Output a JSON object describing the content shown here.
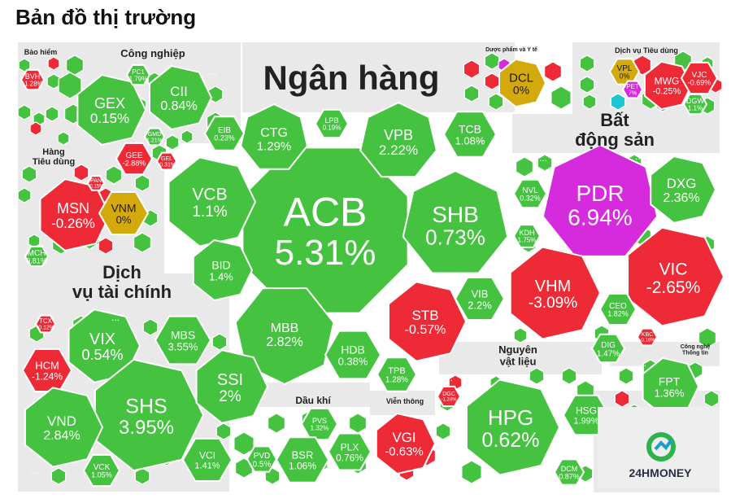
{
  "page": {
    "title": "Bản đồ thị trường"
  },
  "colors": {
    "up": "#45c240",
    "down": "#ee2a36",
    "flat": "#d4a90c",
    "ceiling": "#d62bdc",
    "floor": "#1ec5d3",
    "gap": "#e9e9e9"
  },
  "chart_data": {
    "type": "treemap",
    "sectors": [
      {
        "name": "Bảo hiểm",
        "stocks": [
          {
            "ticker": "BVH",
            "change": "-1.28%"
          }
        ]
      },
      {
        "name": "Công nghiệp",
        "stocks": [
          {
            "ticker": "GEX",
            "change": "0.15%"
          },
          {
            "ticker": "PC1",
            "change": "1.79%"
          },
          {
            "ticker": "CII",
            "change": "0.84%"
          },
          {
            "ticker": "GEE",
            "change": "-2.88%"
          },
          {
            "ticker": "GMD",
            "change": "1.21%"
          },
          {
            "ticker": "GEL",
            "change": "-0.31%"
          }
        ]
      },
      {
        "name": "Ngân hàng",
        "stocks": [
          {
            "ticker": "ACB",
            "change": "5.31%"
          },
          {
            "ticker": "SHB",
            "change": "0.73%"
          },
          {
            "ticker": "VCB",
            "change": "1.1%"
          },
          {
            "ticker": "CTG",
            "change": "1.29%"
          },
          {
            "ticker": "EIB",
            "change": "0.23%"
          },
          {
            "ticker": "LPB",
            "change": "0.19%"
          },
          {
            "ticker": "VPB",
            "change": "2.22%"
          },
          {
            "ticker": "TCB",
            "change": "1.08%"
          },
          {
            "ticker": "BID",
            "change": "1.4%"
          },
          {
            "ticker": "MBB",
            "change": "2.82%"
          },
          {
            "ticker": "HDB",
            "change": "0.38%"
          },
          {
            "ticker": "TPB",
            "change": "1.28%"
          },
          {
            "ticker": "STB",
            "change": "-0.57%"
          },
          {
            "ticker": "VIB",
            "change": "2.2%"
          }
        ]
      },
      {
        "name": "Dược phẩm và Y tế",
        "stocks": [
          {
            "ticker": "DCL",
            "change": "0%"
          }
        ]
      },
      {
        "name": "Dịch vụ Tiêu dùng",
        "stocks": [
          {
            "ticker": "VPL",
            "change": "0%"
          },
          {
            "ticker": "PET",
            "change": "7%"
          },
          {
            "ticker": "MWG",
            "change": "-0.25%"
          },
          {
            "ticker": "VJC",
            "change": "-0.69%"
          },
          {
            "ticker": "DGW",
            "change": "1.1%"
          }
        ]
      },
      {
        "name": "Hàng Tiêu dùng",
        "stocks": [
          {
            "ticker": "MSN",
            "change": "-0.26%"
          },
          {
            "ticker": "VNM",
            "change": "0%"
          },
          {
            "ticker": "PAN",
            "change": "-0.15%"
          },
          {
            "ticker": "MCH",
            "change": "0.81%"
          }
        ]
      },
      {
        "name": "Bất động sản",
        "stocks": [
          {
            "ticker": "PDR",
            "change": "6.94%"
          },
          {
            "ticker": "DXG",
            "change": "2.36%"
          },
          {
            "ticker": "NVL",
            "change": "0.32%"
          },
          {
            "ticker": "KDH",
            "change": "1.75%"
          },
          {
            "ticker": "VHM",
            "change": "-3.09%"
          },
          {
            "ticker": "VIC",
            "change": "-2.65%"
          },
          {
            "ticker": "CEO",
            "change": "1.82%"
          },
          {
            "ticker": "DIG",
            "change": "1.47%"
          },
          {
            "ticker": "KBC",
            "change": "-0.16%"
          }
        ]
      },
      {
        "name": "Dịch vụ tài chính",
        "stocks": [
          {
            "ticker": "VIX",
            "change": "0.54%"
          },
          {
            "ticker": "MBS",
            "change": "3.55%"
          },
          {
            "ticker": "TCX",
            "change": "-0.12%"
          },
          {
            "ticker": "HCM",
            "change": "-1.24%"
          },
          {
            "ticker": "SHS",
            "change": "3.95%"
          },
          {
            "ticker": "SSI",
            "change": "2%"
          },
          {
            "ticker": "VND",
            "change": "2.84%"
          },
          {
            "ticker": "VCK",
            "change": "1.05%"
          },
          {
            "ticker": "VCI",
            "change": "1.41%"
          }
        ]
      },
      {
        "name": "Dầu khí",
        "stocks": [
          {
            "ticker": "PVS",
            "change": "1.32%"
          },
          {
            "ticker": "BSR",
            "change": "1.06%"
          },
          {
            "ticker": "PLX",
            "change": "0.76%"
          },
          {
            "ticker": "PVD",
            "change": "0.5%"
          }
        ]
      },
      {
        "name": "Viễn thông",
        "stocks": [
          {
            "ticker": "VGI",
            "change": "-0.63%"
          }
        ]
      },
      {
        "name": "Nguyên vật liệu",
        "stocks": [
          {
            "ticker": "HPG",
            "change": "0.62%"
          },
          {
            "ticker": "HSG",
            "change": "1.99%"
          },
          {
            "ticker": "DCM",
            "change": "0.87%"
          },
          {
            "ticker": "DGC",
            "change": "-1.24%"
          }
        ]
      },
      {
        "name": "Công nghệ Thông tin",
        "stocks": [
          {
            "ticker": "FPT",
            "change": "1.36%"
          }
        ]
      }
    ],
    "more_marker": "...",
    "brand": "24HMONEY"
  }
}
